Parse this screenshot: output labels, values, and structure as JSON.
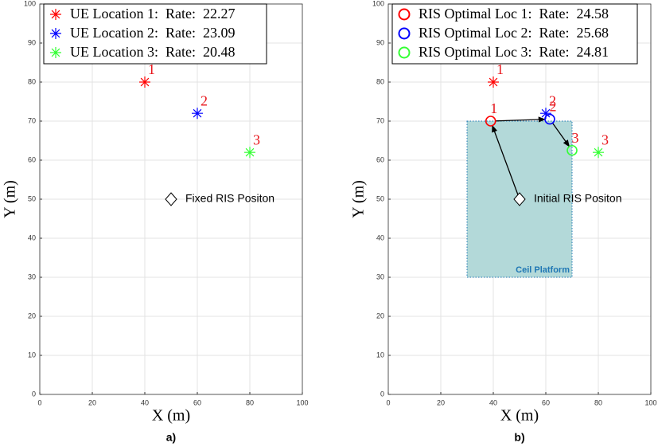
{
  "chart_data": [
    {
      "type": "scatter",
      "label": "a)",
      "xlabel": "X (m)",
      "ylabel": "Y (m)",
      "xlim": [
        0,
        100
      ],
      "ylim": [
        0,
        100
      ],
      "xticks": [
        0,
        20,
        40,
        60,
        80,
        100
      ],
      "yticks": [
        0,
        10,
        20,
        30,
        40,
        50,
        60,
        70,
        80,
        90,
        100
      ],
      "grid": true,
      "legend": "upper left",
      "series": [
        {
          "name": "UE Location 1:  Rate:  22.27",
          "color": "#ff0000",
          "marker": "star",
          "x": [
            40
          ],
          "values": [
            80
          ],
          "point_label": "1"
        },
        {
          "name": "UE Location 2:  Rate:  23.09",
          "color": "#0000ff",
          "marker": "star",
          "x": [
            60
          ],
          "values": [
            72
          ],
          "point_label": "2"
        },
        {
          "name": "UE Location 3:  Rate:  20.48",
          "color": "#33ff33",
          "marker": "star",
          "x": [
            80
          ],
          "values": [
            62
          ],
          "point_label": "3"
        }
      ],
      "ris": {
        "label": "Fixed RIS Positon",
        "x": [
          50
        ],
        "values": [
          50
        ]
      }
    },
    {
      "type": "scatter",
      "label": "b)",
      "xlabel": "X (m)",
      "ylabel": "Y (m)",
      "xlim": [
        0,
        100
      ],
      "ylim": [
        0,
        100
      ],
      "xticks": [
        0,
        20,
        40,
        60,
        80,
        100
      ],
      "yticks": [
        0,
        10,
        20,
        30,
        40,
        50,
        60,
        70,
        80,
        90,
        100
      ],
      "grid": true,
      "legend": "upper left",
      "arrows": true,
      "platform": {
        "label": "Ceil Platform",
        "x": [
          30,
          70
        ],
        "y": [
          30,
          70
        ],
        "color": "#b3d9d9",
        "edge_color": "#1f77b4"
      },
      "ue_points": [
        {
          "color": "#ff0000",
          "marker": "star",
          "x": [
            40
          ],
          "values": [
            80
          ],
          "point_label": "1"
        },
        {
          "color": "#0000ff",
          "marker": "star",
          "x": [
            60
          ],
          "values": [
            72
          ],
          "point_label": "2"
        },
        {
          "color": "#33ff33",
          "marker": "star",
          "x": [
            80
          ],
          "values": [
            62
          ],
          "point_label": "3"
        }
      ],
      "series": [
        {
          "name": "RIS Optimal Loc 1:  Rate:  24.58",
          "color": "#ff0000",
          "marker": "circle",
          "x": [
            39
          ],
          "values": [
            70
          ],
          "point_label": "1"
        },
        {
          "name": "RIS Optimal Loc 2:  Rate:  25.68",
          "color": "#0000ff",
          "marker": "circle",
          "x": [
            61.5
          ],
          "values": [
            70.5
          ],
          "point_label": "2"
        },
        {
          "name": "RIS Optimal Loc 3:  Rate:  24.81",
          "color": "#33ff33",
          "marker": "circle",
          "x": [
            70
          ],
          "values": [
            62.5
          ],
          "point_label": "3"
        }
      ],
      "ris": {
        "label": "Initial RIS Positon",
        "x": [
          50
        ],
        "values": [
          50
        ]
      }
    }
  ]
}
